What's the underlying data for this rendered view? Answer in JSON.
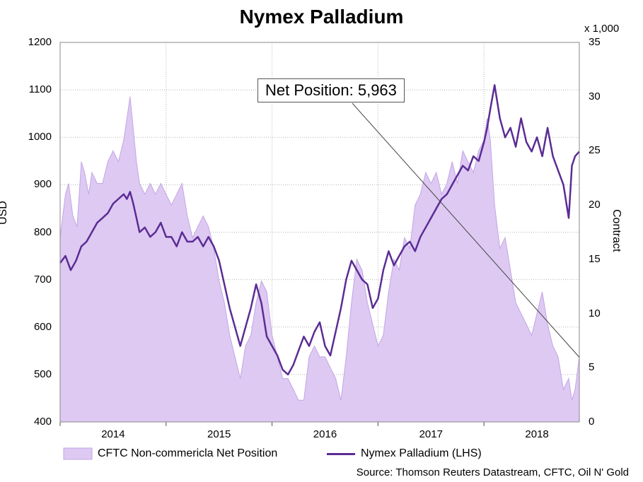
{
  "chart_data": {
    "type": "line",
    "title": "Nymex Palladium",
    "y_left_label": "USD",
    "y_right_label": "Contract",
    "y_right_unit": "x 1,000",
    "y_left_range": [
      400,
      1200
    ],
    "y_right_range": [
      0,
      35
    ],
    "y_left_ticks": [
      "400",
      "500",
      "600",
      "700",
      "800",
      "900",
      "1000",
      "1100",
      "1200"
    ],
    "y_right_ticks": [
      "0",
      "5",
      "10",
      "15",
      "20",
      "25",
      "30",
      "35"
    ],
    "x_tick_labels": [
      {
        "label": "2014",
        "at": 2014.0
      },
      {
        "label": "2015",
        "at": 2015.0
      },
      {
        "label": "2016",
        "at": 2016.0
      },
      {
        "label": "2017",
        "at": 2017.0
      },
      {
        "label": "2018",
        "at": 2018.0
      }
    ],
    "x_range": [
      2013.5,
      2018.4
    ],
    "grid": true,
    "legend_position": "bottom",
    "annotation": "Net Position: 5,963",
    "annotation_target": {
      "x": 2018.4,
      "y": 5.963
    },
    "source": "Source: Thomson Reuters Datastream, CFTC, Oil N' Gold",
    "series": [
      {
        "name": "CFTC Non-commericla Net Position",
        "axis": "right",
        "kind": "area",
        "color": "#ddc9f2",
        "edge_color": "#c3a6e6",
        "x": [
          2013.5,
          2013.55,
          2013.58,
          2013.62,
          2013.66,
          2013.7,
          2013.73,
          2013.77,
          2013.8,
          2013.85,
          2013.9,
          2013.95,
          2014.0,
          2014.05,
          2014.1,
          2014.13,
          2014.16,
          2014.19,
          2014.22,
          2014.25,
          2014.3,
          2014.35,
          2014.4,
          2014.45,
          2014.5,
          2014.55,
          2014.6,
          2014.65,
          2014.7,
          2014.75,
          2014.8,
          2014.85,
          2014.9,
          2014.95,
          2015.0,
          2015.05,
          2015.1,
          2015.15,
          2015.2,
          2015.25,
          2015.3,
          2015.35,
          2015.4,
          2015.45,
          2015.5,
          2015.55,
          2015.6,
          2015.65,
          2015.7,
          2015.75,
          2015.8,
          2015.85,
          2015.9,
          2015.95,
          2016.0,
          2016.05,
          2016.1,
          2016.15,
          2016.2,
          2016.25,
          2016.3,
          2016.35,
          2016.4,
          2016.45,
          2016.5,
          2016.55,
          2016.6,
          2016.65,
          2016.7,
          2016.75,
          2016.8,
          2016.85,
          2016.9,
          2016.95,
          2017.0,
          2017.05,
          2017.1,
          2017.15,
          2017.2,
          2017.25,
          2017.3,
          2017.35,
          2017.4,
          2017.45,
          2017.5,
          2017.53,
          2017.56,
          2017.6,
          2017.65,
          2017.7,
          2017.75,
          2017.8,
          2017.85,
          2017.9,
          2017.95,
          2018.0,
          2018.05,
          2018.1,
          2018.15,
          2018.2,
          2018.25,
          2018.3,
          2018.33,
          2018.36,
          2018.4
        ],
        "values": [
          17,
          21,
          22,
          19,
          18,
          24,
          23,
          21,
          23,
          22,
          22,
          24,
          25,
          24,
          26,
          28,
          30,
          27,
          24,
          22,
          21,
          22,
          21,
          22,
          21,
          20,
          21,
          22,
          19,
          17,
          18,
          19,
          18,
          16,
          13,
          11,
          8,
          6,
          4,
          7,
          8,
          11,
          13,
          12,
          8,
          6,
          4,
          4,
          3,
          2,
          2,
          6,
          7,
          6,
          6,
          5,
          4,
          2,
          6,
          11,
          15,
          14,
          11,
          9,
          7,
          8,
          12,
          15,
          14,
          17,
          16,
          20,
          21,
          23,
          22,
          23,
          21,
          22,
          24,
          22,
          25,
          24,
          23,
          25,
          26,
          28,
          26,
          20,
          16,
          17,
          14,
          11,
          10,
          9,
          8,
          10,
          12,
          9,
          7,
          6,
          3,
          4,
          2,
          3,
          6
        ]
      },
      {
        "name": "Nymex Palladium (LHS)",
        "axis": "left",
        "kind": "line",
        "color": "#5b2c94",
        "x": [
          2013.5,
          2013.55,
          2013.6,
          2013.65,
          2013.7,
          2013.75,
          2013.8,
          2013.85,
          2013.9,
          2013.95,
          2014.0,
          2014.05,
          2014.1,
          2014.13,
          2014.16,
          2014.19,
          2014.22,
          2014.25,
          2014.3,
          2014.35,
          2014.4,
          2014.45,
          2014.5,
          2014.55,
          2014.6,
          2014.65,
          2014.7,
          2014.75,
          2014.8,
          2014.85,
          2014.9,
          2014.95,
          2015.0,
          2015.05,
          2015.1,
          2015.15,
          2015.2,
          2015.25,
          2015.3,
          2015.35,
          2015.4,
          2015.45,
          2015.5,
          2015.55,
          2015.6,
          2015.65,
          2015.7,
          2015.75,
          2015.8,
          2015.85,
          2015.9,
          2015.95,
          2016.0,
          2016.05,
          2016.1,
          2016.15,
          2016.2,
          2016.25,
          2016.3,
          2016.35,
          2016.4,
          2016.45,
          2016.5,
          2016.55,
          2016.6,
          2016.65,
          2016.7,
          2016.75,
          2016.8,
          2016.85,
          2016.9,
          2016.95,
          2017.0,
          2017.05,
          2017.1,
          2017.15,
          2017.2,
          2017.25,
          2017.3,
          2017.35,
          2017.4,
          2017.45,
          2017.5,
          2017.53,
          2017.56,
          2017.6,
          2017.65,
          2017.7,
          2017.75,
          2017.8,
          2017.85,
          2017.9,
          2017.95,
          2018.0,
          2018.05,
          2018.1,
          2018.15,
          2018.2,
          2018.25,
          2018.3,
          2018.33,
          2018.36,
          2018.4
        ],
        "values": [
          735,
          750,
          720,
          740,
          770,
          780,
          800,
          820,
          830,
          840,
          860,
          870,
          880,
          870,
          885,
          860,
          830,
          800,
          810,
          790,
          800,
          820,
          790,
          790,
          770,
          800,
          780,
          780,
          790,
          770,
          790,
          770,
          740,
          690,
          640,
          600,
          560,
          600,
          640,
          690,
          650,
          580,
          560,
          540,
          510,
          500,
          520,
          550,
          580,
          560,
          590,
          610,
          560,
          540,
          590,
          640,
          700,
          740,
          720,
          700,
          690,
          640,
          660,
          720,
          760,
          730,
          750,
          770,
          780,
          760,
          790,
          810,
          830,
          850,
          870,
          880,
          900,
          920,
          940,
          930,
          960,
          950,
          990,
          1020,
          1060,
          1110,
          1040,
          1000,
          1020,
          980,
          1040,
          990,
          970,
          1000,
          960,
          1020,
          960,
          930,
          900,
          830,
          940,
          960,
          970
        ]
      }
    ]
  }
}
